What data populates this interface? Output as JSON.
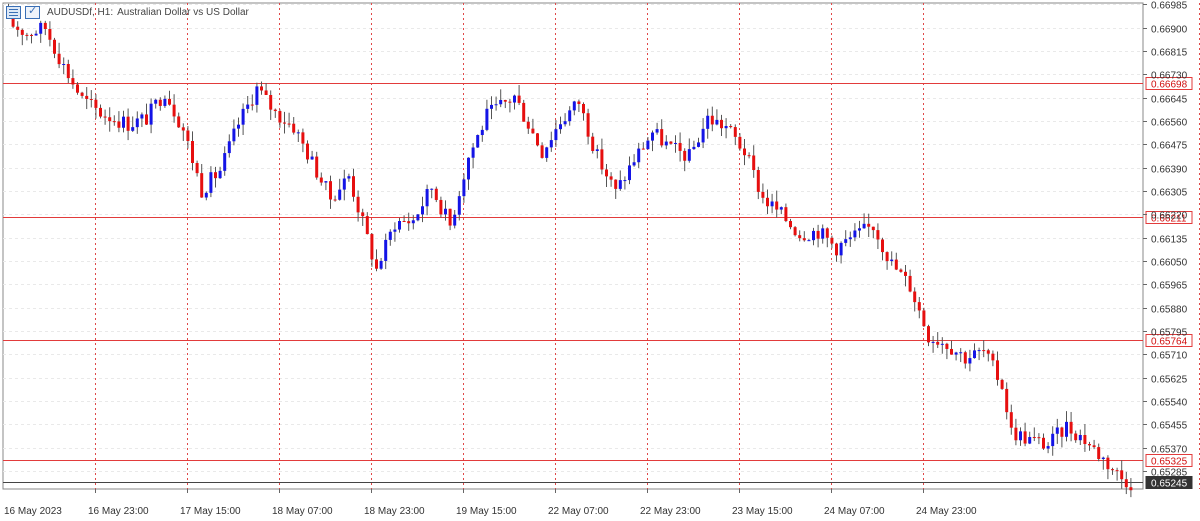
{
  "window": {
    "symbol": "AUDUSDf, H1:",
    "description": "Australian Dollar vs US Dollar",
    "icons": [
      "chart-list-icon",
      "one-click-trading-icon"
    ]
  },
  "colors": {
    "bull": "#1414e6",
    "bear": "#e60f0f",
    "level_line": "#e23b3b",
    "last_price_line": "#444444",
    "grid": "#e9e9e9",
    "session_separator": "#e04848"
  },
  "chart_data": {
    "type": "candlestick",
    "timeframe": "H1",
    "ylim": [
      0.6522,
      0.6699
    ],
    "price_ticks": [
      "0.66985",
      "0.66900",
      "0.66815",
      "0.66730",
      "0.66645",
      "0.66560",
      "0.66475",
      "0.66390",
      "0.66305",
      "0.66220",
      "0.66135",
      "0.66050",
      "0.65965",
      "0.65880",
      "0.65795",
      "0.65710",
      "0.65625",
      "0.65540",
      "0.65455",
      "0.65370",
      "0.65285"
    ],
    "time_labels": [
      "16 May 2023",
      "16 May 23:00",
      "17 May 15:00",
      "18 May 07:00",
      "18 May 23:00",
      "19 May 15:00",
      "22 May 07:00",
      "22 May 23:00",
      "23 May 15:00",
      "24 May 07:00",
      "24 May 23:00"
    ],
    "horizontal_levels": [
      {
        "label": "0.66698",
        "value": 0.66698
      },
      {
        "label": "0.66211",
        "value": 0.66211
      },
      {
        "label": "0.65764",
        "value": 0.65764
      },
      {
        "label": "0.65325",
        "value": 0.65325
      }
    ],
    "last_price": {
      "label": "0.65245",
      "value": 0.65245
    },
    "close_path": [
      [
        0,
        0.6692
      ],
      [
        4,
        0.6688
      ],
      [
        8,
        0.669
      ],
      [
        12,
        0.6676
      ],
      [
        16,
        0.6664
      ],
      [
        20,
        0.6659
      ],
      [
        26,
        0.6655
      ],
      [
        30,
        0.6657
      ],
      [
        34,
        0.6667
      ],
      [
        38,
        0.6653
      ],
      [
        42,
        0.6631
      ],
      [
        46,
        0.6638
      ],
      [
        50,
        0.6655
      ],
      [
        54,
        0.6668
      ],
      [
        58,
        0.6659
      ],
      [
        62,
        0.6654
      ],
      [
        66,
        0.6641
      ],
      [
        70,
        0.6628
      ],
      [
        74,
        0.6636
      ],
      [
        80,
        0.6602
      ],
      [
        84,
        0.6619
      ],
      [
        88,
        0.662
      ],
      [
        92,
        0.6632
      ],
      [
        96,
        0.6618
      ],
      [
        100,
        0.6643
      ],
      [
        104,
        0.6658
      ],
      [
        110,
        0.6665
      ],
      [
        116,
        0.6645
      ],
      [
        120,
        0.6656
      ],
      [
        124,
        0.6663
      ],
      [
        128,
        0.6643
      ],
      [
        132,
        0.663
      ],
      [
        136,
        0.6642
      ],
      [
        140,
        0.6652
      ],
      [
        144,
        0.6646
      ],
      [
        148,
        0.6643
      ],
      [
        152,
        0.6657
      ],
      [
        156,
        0.6654
      ],
      [
        160,
        0.6645
      ],
      [
        164,
        0.6628
      ],
      [
        168,
        0.6622
      ],
      [
        172,
        0.6615
      ],
      [
        176,
        0.6616
      ],
      [
        180,
        0.661
      ],
      [
        184,
        0.6614
      ],
      [
        188,
        0.6618
      ],
      [
        192,
        0.6604
      ],
      [
        196,
        0.6596
      ],
      [
        200,
        0.6578
      ],
      [
        204,
        0.6575
      ],
      [
        208,
        0.657
      ],
      [
        212,
        0.6572
      ],
      [
        216,
        0.656
      ],
      [
        218,
        0.6543
      ],
      [
        222,
        0.654
      ],
      [
        226,
        0.6538
      ],
      [
        230,
        0.6545
      ],
      [
        234,
        0.654
      ],
      [
        238,
        0.6533
      ],
      [
        242,
        0.6526
      ],
      [
        244,
        0.65245
      ]
    ]
  }
}
